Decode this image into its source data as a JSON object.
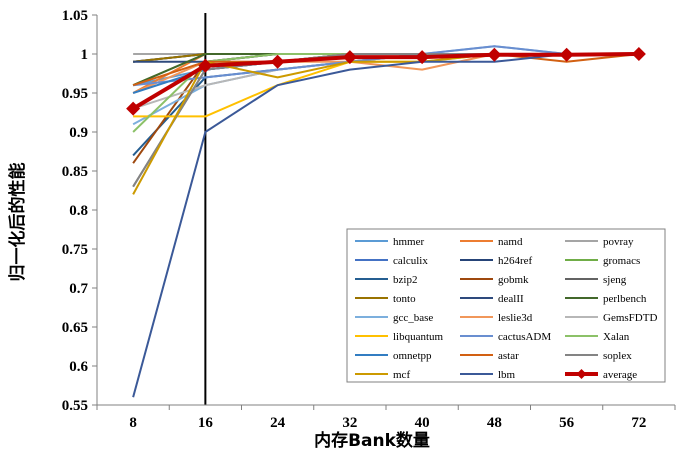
{
  "chart_data": {
    "type": "line",
    "title": "",
    "xlabel": "内存Bank数量",
    "ylabel": "归一化后的性能",
    "categories": [
      "8",
      "16",
      "24",
      "32",
      "40",
      "48",
      "56",
      "72"
    ],
    "ylim": [
      0.55,
      1.05
    ],
    "yticks": [
      "0.55",
      "0.6",
      "0.65",
      "0.7",
      "0.75",
      "0.8",
      "0.85",
      "0.9",
      "0.95",
      "1",
      "1.05"
    ],
    "grid": false,
    "legend_position": "bottom-right",
    "reference_line_at": "16",
    "series": [
      {
        "name": "hmmer",
        "color": "#5b9bd5",
        "values": [
          0.96,
          0.98,
          0.99,
          1.0,
          1.0,
          1.0,
          1.0,
          1.0
        ]
      },
      {
        "name": "namd",
        "color": "#ed7d31",
        "values": [
          0.95,
          1.0,
          1.0,
          1.0,
          1.0,
          1.0,
          1.0,
          1.0
        ]
      },
      {
        "name": "povray",
        "color": "#a5a5a5",
        "values": [
          1.0,
          1.0,
          1.0,
          1.0,
          1.0,
          1.0,
          1.0,
          1.0
        ]
      },
      {
        "name": "calculix",
        "color": "#4472c4",
        "values": [
          0.99,
          1.0,
          1.0,
          1.0,
          1.0,
          1.0,
          1.0,
          1.0
        ]
      },
      {
        "name": "h264ref",
        "color": "#264478",
        "values": [
          0.99,
          1.0,
          1.0,
          1.0,
          1.0,
          1.0,
          1.0,
          1.0
        ]
      },
      {
        "name": "gromacs",
        "color": "#70ad47",
        "values": [
          0.96,
          1.0,
          1.0,
          1.0,
          1.0,
          1.0,
          1.0,
          1.0
        ]
      },
      {
        "name": "bzip2",
        "color": "#255e91",
        "values": [
          0.87,
          0.97,
          0.98,
          0.99,
          1.0,
          1.0,
          1.0,
          1.0
        ]
      },
      {
        "name": "gobmk",
        "color": "#9e480e",
        "values": [
          0.86,
          0.99,
          1.0,
          1.0,
          1.0,
          1.0,
          1.0,
          1.0
        ]
      },
      {
        "name": "sjeng",
        "color": "#636363",
        "values": [
          0.83,
          0.98,
          0.99,
          1.0,
          1.0,
          1.0,
          1.0,
          1.0
        ]
      },
      {
        "name": "tonto",
        "color": "#997300",
        "values": [
          0.99,
          1.0,
          1.0,
          1.0,
          1.0,
          1.0,
          1.0,
          1.0
        ]
      },
      {
        "name": "dealII",
        "color": "#2e4a7d",
        "values": [
          0.99,
          0.99,
          1.0,
          1.0,
          1.0,
          1.0,
          1.0,
          1.0
        ]
      },
      {
        "name": "perlbench",
        "color": "#43682b",
        "values": [
          0.96,
          1.0,
          1.0,
          1.0,
          1.0,
          1.0,
          1.0,
          1.0
        ]
      },
      {
        "name": "gcc_base",
        "color": "#7cafdd",
        "values": [
          0.91,
          0.96,
          0.98,
          0.99,
          1.0,
          1.01,
          1.0,
          1.0
        ]
      },
      {
        "name": "leslie3d",
        "color": "#f1975a",
        "values": [
          0.95,
          0.99,
          0.99,
          0.99,
          0.98,
          1.0,
          1.0,
          1.0
        ]
      },
      {
        "name": "GemsFDTD",
        "color": "#b7b7b7",
        "values": [
          0.93,
          0.96,
          0.98,
          0.99,
          1.0,
          1.0,
          1.0,
          1.0
        ]
      },
      {
        "name": "libquantum",
        "color": "#ffc000",
        "values": [
          0.92,
          0.92,
          0.96,
          0.99,
          0.99,
          1.0,
          1.0,
          1.0
        ]
      },
      {
        "name": "cactusADM",
        "color": "#698ed0",
        "values": [
          0.96,
          0.97,
          0.98,
          0.99,
          1.0,
          1.01,
          1.0,
          1.0
        ]
      },
      {
        "name": "Xalan",
        "color": "#8cc168",
        "values": [
          0.9,
          0.99,
          1.0,
          1.0,
          1.0,
          1.0,
          1.0,
          1.0
        ]
      },
      {
        "name": "omnetpp",
        "color": "#327dc2",
        "values": [
          0.95,
          0.98,
          0.99,
          1.0,
          1.0,
          1.0,
          1.0,
          1.0
        ]
      },
      {
        "name": "astar",
        "color": "#d26012",
        "values": [
          0.96,
          0.99,
          0.99,
          1.0,
          1.0,
          1.0,
          0.99,
          1.0
        ]
      },
      {
        "name": "soplex",
        "color": "#848484",
        "values": [
          0.83,
          0.98,
          0.99,
          1.0,
          1.0,
          1.0,
          1.0,
          1.0
        ]
      },
      {
        "name": "mcf",
        "color": "#cc9a00",
        "values": [
          0.82,
          0.99,
          0.97,
          0.99,
          0.99,
          1.0,
          1.0,
          1.0
        ]
      },
      {
        "name": "lbm",
        "color": "#3b5998",
        "values": [
          0.56,
          0.9,
          0.96,
          0.98,
          0.99,
          0.99,
          1.0,
          1.0
        ]
      },
      {
        "name": "average",
        "color": "#c00000",
        "values": [
          0.93,
          0.985,
          0.99,
          0.996,
          0.996,
          0.999,
          0.999,
          1.0
        ],
        "emphasis": true
      }
    ]
  }
}
